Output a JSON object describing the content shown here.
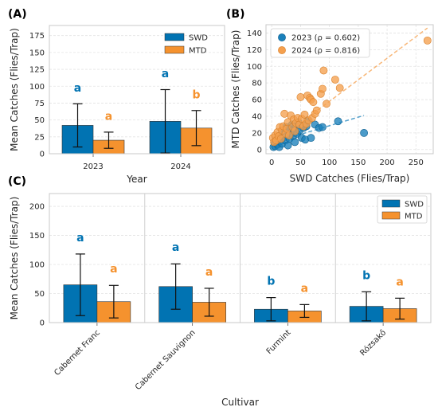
{
  "colors": {
    "swd": "#0173b2",
    "mtd": "#f5922e",
    "swd_scatter": "#1a80bb",
    "mtd_scatter": "#f5a04e"
  },
  "chart_data": [
    {
      "id": "A",
      "panel_label": "(A)",
      "type": "bar",
      "categories": [
        "2023",
        "2024"
      ],
      "series": [
        {
          "name": "SWD",
          "values": [
            42,
            48
          ],
          "err": [
            32,
            47
          ],
          "letters": [
            "a",
            "a"
          ]
        },
        {
          "name": "MTD",
          "values": [
            20,
            38
          ],
          "err": [
            12,
            26
          ],
          "letters": [
            "a",
            "b"
          ]
        }
      ],
      "xlabel": "Year",
      "ylabel": "Mean Catches (Flies/Trap)",
      "ylim": [
        0,
        190
      ],
      "yticks": [
        "0",
        "25",
        "50",
        "75",
        "100",
        "125",
        "150",
        "175"
      ],
      "legend": "top-right",
      "grid": true
    },
    {
      "id": "B",
      "panel_label": "(B)",
      "type": "scatter",
      "xlabel": "SWD Catches (Flies/Trap)",
      "ylabel": "MTD Catches (Flies/Trap)",
      "xlim": [
        -10,
        280
      ],
      "ylim": [
        -5,
        150
      ],
      "xticks": [
        "0",
        "50",
        "100",
        "150",
        "200",
        "250"
      ],
      "yticks": [
        "0",
        "20",
        "40",
        "60",
        "80",
        "100",
        "120",
        "140"
      ],
      "legend": "top-left",
      "grid": true,
      "series": [
        {
          "name": "2023 (ρ = 0.602)",
          "trend": [
            [
              0,
              8
            ],
            [
              160,
              41
            ]
          ],
          "points": [
            [
              3,
              3
            ],
            [
              5,
              8
            ],
            [
              6,
              4
            ],
            [
              8,
              12
            ],
            [
              10,
              6
            ],
            [
              12,
              14
            ],
            [
              13,
              3
            ],
            [
              15,
              10
            ],
            [
              17,
              19
            ],
            [
              18,
              7
            ],
            [
              20,
              22
            ],
            [
              22,
              15
            ],
            [
              24,
              11
            ],
            [
              25,
              27
            ],
            [
              27,
              18
            ],
            [
              28,
              5
            ],
            [
              30,
              25
            ],
            [
              31,
              13
            ],
            [
              33,
              20
            ],
            [
              35,
              30
            ],
            [
              37,
              16
            ],
            [
              38,
              24
            ],
            [
              40,
              9
            ],
            [
              42,
              28
            ],
            [
              44,
              19
            ],
            [
              46,
              33
            ],
            [
              48,
              23
            ],
            [
              52,
              14
            ],
            [
              55,
              26
            ],
            [
              58,
              12
            ],
            [
              60,
              28
            ],
            [
              62,
              35
            ],
            [
              68,
              14
            ],
            [
              75,
              30
            ],
            [
              82,
              26
            ],
            [
              88,
              27
            ],
            [
              115,
              34
            ],
            [
              160,
              20
            ]
          ]
        },
        {
          "name": "2024 (ρ = 0.816)",
          "trend": [
            [
              0,
              6
            ],
            [
              270,
              146
            ]
          ],
          "points": [
            [
              2,
              14
            ],
            [
              4,
              9
            ],
            [
              6,
              17
            ],
            [
              8,
              11
            ],
            [
              10,
              21
            ],
            [
              12,
              16
            ],
            [
              14,
              27
            ],
            [
              16,
              13
            ],
            [
              18,
              23
            ],
            [
              20,
              28
            ],
            [
              22,
              43
            ],
            [
              24,
              19
            ],
            [
              26,
              25
            ],
            [
              28,
              33
            ],
            [
              30,
              17
            ],
            [
              33,
              41
            ],
            [
              36,
              27
            ],
            [
              38,
              36
            ],
            [
              40,
              22
            ],
            [
              42,
              32
            ],
            [
              45,
              38
            ],
            [
              48,
              30
            ],
            [
              50,
              63
            ],
            [
              52,
              37
            ],
            [
              55,
              28
            ],
            [
              57,
              42
            ],
            [
              60,
              31
            ],
            [
              62,
              65
            ],
            [
              64,
              35
            ],
            [
              66,
              62
            ],
            [
              68,
              60
            ],
            [
              70,
              38
            ],
            [
              72,
              57
            ],
            [
              75,
              43
            ],
            [
              78,
              47
            ],
            [
              85,
              67
            ],
            [
              88,
              73
            ],
            [
              90,
              95
            ],
            [
              95,
              55
            ],
            [
              110,
              84
            ],
            [
              118,
              74
            ],
            [
              270,
              131
            ]
          ]
        }
      ]
    },
    {
      "id": "C",
      "panel_label": "(C)",
      "type": "bar",
      "categories": [
        "Cabernet Franc",
        "Cabernet Sauvignon",
        "Furmint",
        "Rózsakő"
      ],
      "series": [
        {
          "name": "SWD",
          "values": [
            65,
            62,
            23,
            28
          ],
          "err": [
            53,
            39,
            20,
            25
          ],
          "letters": [
            "a",
            "a",
            "b",
            "b"
          ]
        },
        {
          "name": "MTD",
          "values": [
            36,
            35,
            20,
            24
          ],
          "err": [
            28,
            24,
            11,
            18
          ],
          "letters": [
            "a",
            "a",
            "a",
            "a"
          ]
        }
      ],
      "xlabel": "Cultivar",
      "ylabel": "Mean Catches (Flies/Trap)",
      "ylim": [
        0,
        222
      ],
      "yticks": [
        "0",
        "50",
        "100",
        "150",
        "200"
      ],
      "legend": "top-right",
      "grid": true
    }
  ]
}
